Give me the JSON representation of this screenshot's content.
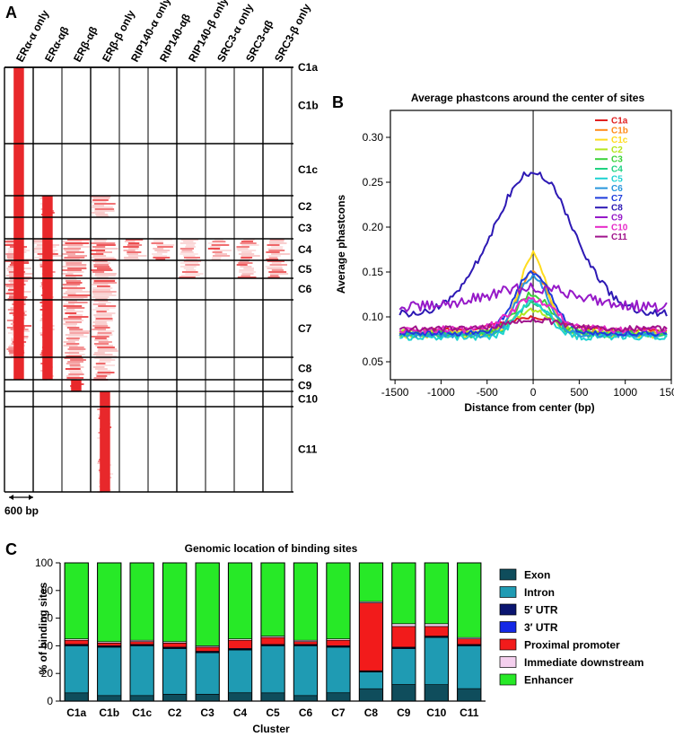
{
  "panel_labels": {
    "a": "A",
    "b": "B",
    "c": "C"
  },
  "chart_data": [
    {
      "type": "heatmap",
      "columns": [
        "ERα-α only",
        "ERα-αβ",
        "ERβ-αβ",
        "ERβ-β only",
        "RIP140-α only",
        "RIP140-αβ",
        "RIP140-β only",
        "SRC3-α only",
        "SRC3-αβ",
        "SRC3-β only"
      ],
      "clusters": [
        "C1a",
        "C1b",
        "C1c",
        "C2",
        "C3",
        "C4",
        "C5",
        "C6",
        "C7",
        "C8",
        "C9",
        "C10",
        "C11"
      ],
      "cluster_bounds": [
        75,
        160,
        218,
        242,
        266,
        290,
        310,
        334,
        398,
        423,
        436,
        453,
        548
      ],
      "colors": {
        "signal": "#e8282b",
        "faint": "#f6b7b7",
        "grid": "#000000"
      },
      "scale_label": "600 bp"
    },
    {
      "type": "line",
      "title": "Average phastcons around the center of sites",
      "xlabel": "Distance from center (bp)",
      "ylabel": "Average phastcons",
      "xlim": [
        -1550,
        1500
      ],
      "ylim": [
        0.03,
        0.33
      ],
      "xticks": [
        "-1500",
        "-1000",
        "-500",
        "0",
        "500",
        "1000",
        "1500"
      ],
      "xtick_values": [
        -1500,
        -1000,
        -500,
        0,
        500,
        1000,
        1500
      ],
      "yticks": [
        "0.05",
        "0.10",
        "0.15",
        "0.20",
        "0.25",
        "0.30"
      ],
      "ytick_values": [
        0.05,
        0.1,
        0.15,
        0.2,
        0.25,
        0.3
      ],
      "legend_position": "top-right",
      "series": [
        {
          "name": "C1a",
          "color": "#e02020",
          "peak": 0.099,
          "base": 0.085,
          "width": 330,
          "amp": 0.002
        },
        {
          "name": "C1b",
          "color": "#ff8c1a",
          "peak": 0.15,
          "base": 0.082,
          "width": 170,
          "amp": 0.003
        },
        {
          "name": "C1c",
          "color": "#ffdc1e",
          "peak": 0.17,
          "base": 0.08,
          "width": 150,
          "amp": 0.004
        },
        {
          "name": "C2",
          "color": "#b4e61e",
          "peak": 0.108,
          "base": 0.083,
          "width": 200,
          "amp": 0.003
        },
        {
          "name": "C3",
          "color": "#3cd23c",
          "peak": 0.125,
          "base": 0.081,
          "width": 190,
          "amp": 0.004
        },
        {
          "name": "C4",
          "color": "#20d282",
          "peak": 0.115,
          "base": 0.08,
          "width": 180,
          "amp": 0.003
        },
        {
          "name": "C5",
          "color": "#20d2d2",
          "peak": 0.118,
          "base": 0.078,
          "width": 170,
          "amp": 0.004
        },
        {
          "name": "C6",
          "color": "#2896dc",
          "peak": 0.145,
          "base": 0.08,
          "width": 170,
          "amp": 0.003
        },
        {
          "name": "C7",
          "color": "#1e3cdc",
          "peak": 0.15,
          "base": 0.082,
          "width": 200,
          "amp": 0.003
        },
        {
          "name": "C8",
          "color": "#2d19b4",
          "peak": 0.262,
          "base": 0.103,
          "width": 430,
          "amp": 0.004
        },
        {
          "name": "C9",
          "color": "#9619c8",
          "peak": 0.132,
          "base": 0.11,
          "width": 520,
          "amp": 0.006
        },
        {
          "name": "C10",
          "color": "#e628c8",
          "peak": 0.12,
          "base": 0.086,
          "width": 230,
          "amp": 0.004
        },
        {
          "name": "C11",
          "color": "#a0148c",
          "peak": 0.097,
          "base": 0.087,
          "width": 260,
          "amp": 0.003
        }
      ]
    },
    {
      "type": "bar",
      "stacked": true,
      "title": "Genomic location of binding sites",
      "xlabel": "Cluster",
      "ylabel": "% of binding sites",
      "ylim": [
        0,
        100
      ],
      "yticks": [
        "0",
        "20",
        "40",
        "60",
        "80",
        "100"
      ],
      "ytick_values": [
        0,
        20,
        40,
        60,
        80,
        100
      ],
      "categories": [
        "C1a",
        "C1b",
        "C1c",
        "C2",
        "C3",
        "C4",
        "C5",
        "C6",
        "C7",
        "C8",
        "C9",
        "C10",
        "C11"
      ],
      "legend_position": "right",
      "series": [
        {
          "name": "Exon",
          "color": "#0f4d5c",
          "values": [
            6,
            4,
            4,
            5,
            5,
            6,
            6,
            4,
            6,
            9,
            12,
            12,
            9
          ]
        },
        {
          "name": "Intron",
          "color": "#1f9bb3",
          "values": [
            34,
            35,
            36,
            33,
            30,
            31,
            34,
            36,
            33,
            12,
            26,
            34,
            31
          ]
        },
        {
          "name": "5′ UTR",
          "color": "#0a1570",
          "values": [
            0.5,
            0.5,
            0.5,
            0.5,
            0.5,
            0.5,
            0.5,
            0.5,
            0.5,
            0.5,
            0.5,
            0.5,
            0.5
          ]
        },
        {
          "name": "3′ UTR",
          "color": "#1428e6",
          "values": [
            0.5,
            0.5,
            0.5,
            0.5,
            0.5,
            0.5,
            0.5,
            0.5,
            0.5,
            0.5,
            0.5,
            0.5,
            0.5
          ]
        },
        {
          "name": "Proximal promoter",
          "color": "#f21b1b",
          "values": [
            3,
            2,
            2,
            3,
            3,
            6,
            5,
            2,
            4,
            49,
            15,
            7,
            4
          ]
        },
        {
          "name": "Immediate downstream",
          "color": "#f4cfee",
          "values": [
            1,
            1,
            1,
            1,
            1,
            1,
            1,
            1,
            1,
            1,
            2,
            2,
            1
          ]
        },
        {
          "name": "Enhancer",
          "color": "#27e927",
          "values": [
            55,
            57,
            56,
            57,
            60,
            55,
            53,
            56,
            55,
            28,
            44,
            44,
            54
          ]
        }
      ]
    }
  ]
}
